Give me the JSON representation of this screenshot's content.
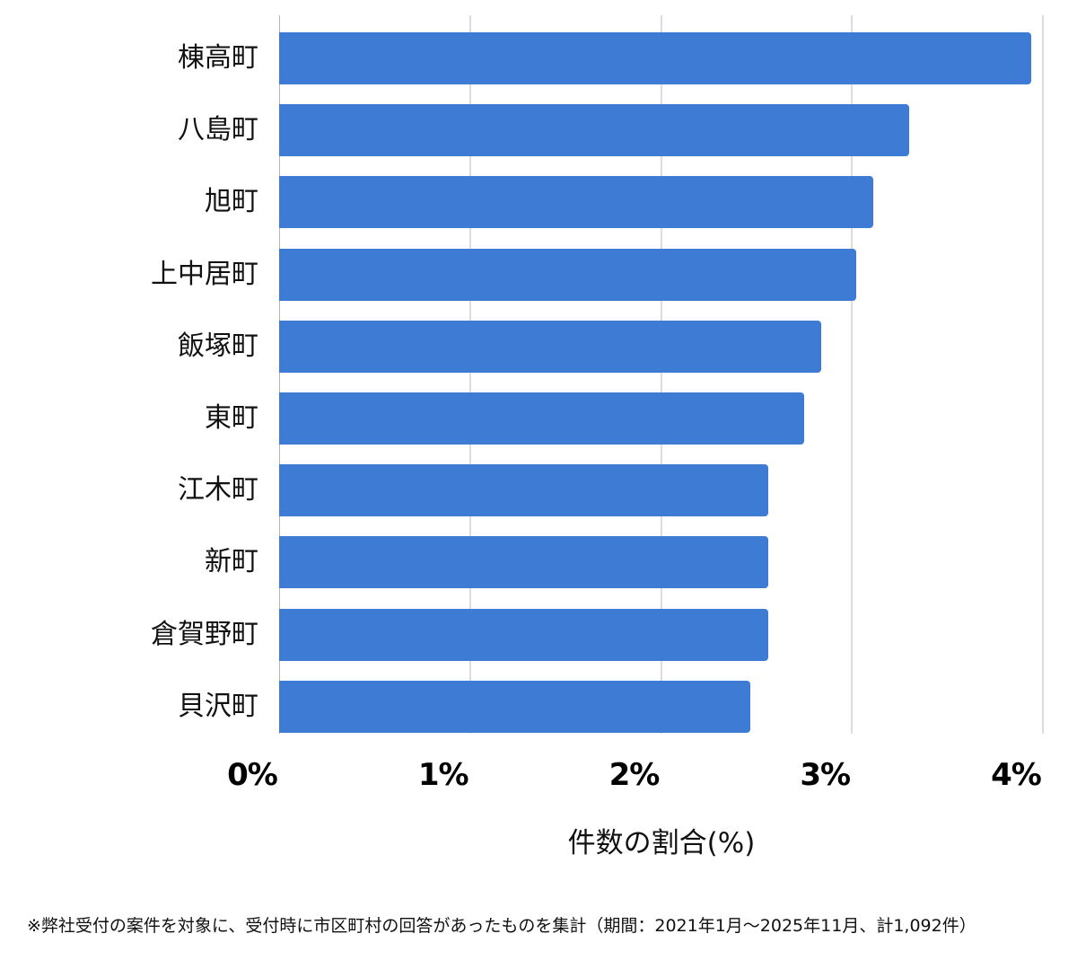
{
  "chart_data": {
    "type": "bar",
    "orientation": "horizontal",
    "title": "",
    "xlabel": "件数の割合(%)",
    "ylabel": "",
    "xlim": [
      0,
      4
    ],
    "x_ticks": [
      "0%",
      "1%",
      "2%",
      "3%",
      "4%"
    ],
    "grid": true,
    "legend": null,
    "categories": [
      "棟高町",
      "八島町",
      "旭町",
      "上中居町",
      "飯塚町",
      "東町",
      "江木町",
      "新町",
      "倉賀野町",
      "貝沢町"
    ],
    "values": [
      3.94,
      3.3,
      3.11,
      3.02,
      2.84,
      2.75,
      2.56,
      2.56,
      2.56,
      2.47
    ],
    "bar_color": "#3d7bd4",
    "footnote": "※弊社受付の案件を対象に、受付時に市区町村の回答があったものを集計（期間：2021年1月～2025年11月、計1,092件）"
  },
  "axis": {
    "ticks": [
      "0%",
      "1%",
      "2%",
      "3%",
      "4%"
    ],
    "label": "件数の割合(%)"
  },
  "rows": [
    {
      "label": "棟高町",
      "value": 3.94
    },
    {
      "label": "八島町",
      "value": 3.3
    },
    {
      "label": "旭町",
      "value": 3.11
    },
    {
      "label": "上中居町",
      "value": 3.02
    },
    {
      "label": "飯塚町",
      "value": 2.84
    },
    {
      "label": "東町",
      "value": 2.75
    },
    {
      "label": "江木町",
      "value": 2.56
    },
    {
      "label": "新町",
      "value": 2.56
    },
    {
      "label": "倉賀野町",
      "value": 2.56
    },
    {
      "label": "貝沢町",
      "value": 2.47
    }
  ],
  "footnote": "※弊社受付の案件を対象に、受付時に市区町村の回答があったものを集計（期間：2021年1月～2025年11月、計1,092件）",
  "colors": {
    "bar": "#3d7bd4",
    "grid": "#dcdcdc",
    "axis": "#b5b5b5",
    "text": "#111111"
  }
}
